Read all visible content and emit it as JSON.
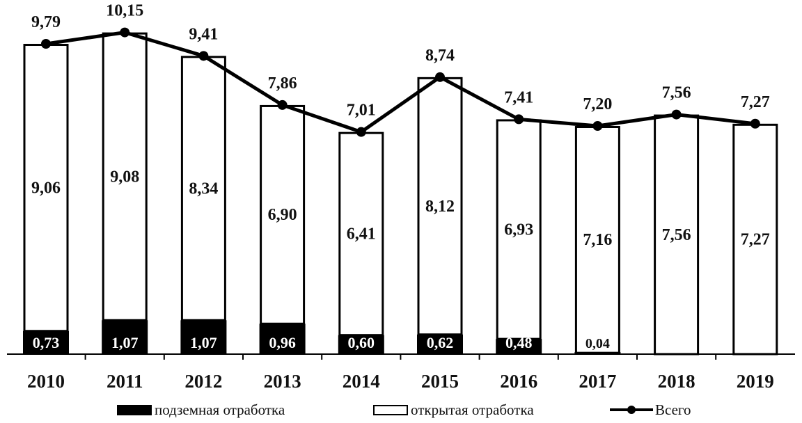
{
  "chart_data": {
    "type": "bar",
    "stacked": true,
    "categories": [
      "2010",
      "2011",
      "2012",
      "2013",
      "2014",
      "2015",
      "2016",
      "2017",
      "2018",
      "2019"
    ],
    "series": [
      {
        "name": "подземная отработка",
        "kind": "bar",
        "color": "#000000",
        "values": [
          0.73,
          1.07,
          1.07,
          0.96,
          0.6,
          0.62,
          0.48,
          0.04,
          0,
          0
        ],
        "labels": [
          "0,73",
          "1,07",
          "1,07",
          "0,96",
          "0,60",
          "0,62",
          "0,48",
          "0,04",
          "",
          ""
        ]
      },
      {
        "name": "открытая отработка",
        "kind": "bar",
        "color": "#ffffff",
        "values": [
          9.06,
          9.08,
          8.34,
          6.9,
          6.41,
          8.12,
          6.93,
          7.16,
          7.56,
          7.27
        ],
        "labels": [
          "9,06",
          "9,08",
          "8,34",
          "6,90",
          "6,41",
          "8,12",
          "6,93",
          "7,16",
          "7,56",
          "7,27"
        ]
      },
      {
        "name": "Всего",
        "kind": "line",
        "color": "#000000",
        "values": [
          9.79,
          10.15,
          9.41,
          7.86,
          7.01,
          8.74,
          7.41,
          7.2,
          7.56,
          7.27
        ],
        "labels": [
          "9,79",
          "10,15",
          "9,41",
          "7,86",
          "7,01",
          "8,74",
          "7,41",
          "7,20",
          "7,56",
          "7,27"
        ]
      }
    ],
    "ylim": [
      0,
      10.8
    ],
    "grid": false,
    "legend_position": "bottom",
    "legend": [
      "подземная отработка",
      "открытая отработка",
      "Всего"
    ]
  }
}
